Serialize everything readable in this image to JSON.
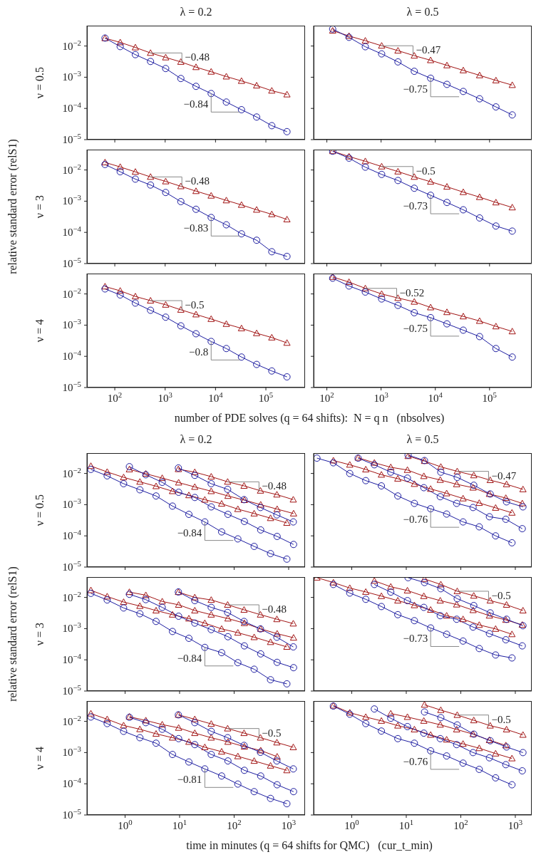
{
  "chart_data": [
    {
      "type": "line",
      "title": "λ = 0.2",
      "ylabel": "ν = 0.5",
      "tick_labels": "y",
      "x": [
        64,
        128,
        256,
        512,
        1024,
        2048,
        4096,
        8192,
        16384,
        32768,
        65536,
        131072,
        262144
      ],
      "xlim": [
        28,
        600000
      ],
      "xticks": [
        {
          "value": 100,
          "label": null
        },
        {
          "value": 1000,
          "label": null
        },
        {
          "value": 10000,
          "label": null
        },
        {
          "value": 100000,
          "label": null
        }
      ],
      "ylim": [
        1e-05,
        0.045
      ],
      "yticks": [
        {
          "value": 1e-05,
          "label": "10$^{−5}$"
        },
        {
          "value": 0.0001,
          "label": "10$^{−4}$"
        },
        {
          "value": 0.001,
          "label": "10$^{−3}$"
        },
        {
          "value": 0.01,
          "label": "10$^{−2}$"
        }
      ],
      "log": "xy",
      "series": [
        {
          "color": "#a11414",
          "marker": "triangle",
          "values": [
            0.0178,
            0.0131,
            0.009,
            0.006,
            0.0043,
            0.0031,
            0.0021,
            0.0015,
            0.00105,
            0.00076,
            0.00054,
            0.00037,
            0.00028
          ]
        },
        {
          "color": "#1c1ca0",
          "marker": "circle",
          "values": [
            0.018,
            0.0096,
            0.0053,
            0.0032,
            0.0019,
            0.00091,
            0.00051,
            0.0003,
            0.00016,
            9.1e-05,
            5.3e-05,
            2.8e-05,
            1.8e-05
          ]
        }
      ],
      "annotations": [
        {
          "text": "−0.48",
          "x": 512,
          "y": 0.006
        },
        {
          "text": "−0.84",
          "x": 8192,
          "y": 0.0003
        }
      ]
    },
    {
      "type": "line",
      "title": "λ = 0.5",
      "tick_labels": false,
      "x": [
        128,
        256,
        512,
        1024,
        2048,
        4096,
        8192,
        16384,
        32768,
        65536,
        131072,
        262144
      ],
      "xlim": [
        57,
        600000
      ],
      "xticks": [
        {
          "value": 100,
          "label": null
        },
        {
          "value": 1000,
          "label": null
        },
        {
          "value": 10000,
          "label": null
        },
        {
          "value": 100000,
          "label": null
        }
      ],
      "ylim": [
        1e-05,
        0.045
      ],
      "yticks": [
        {
          "value": 1e-05,
          "label": null
        },
        {
          "value": 0.0001,
          "label": null
        },
        {
          "value": 0.001,
          "label": null
        },
        {
          "value": 0.01,
          "label": null
        }
      ],
      "log": "xy",
      "series": [
        {
          "color": "#a11414",
          "marker": "triangle",
          "values": [
            0.031,
            0.021,
            0.0148,
            0.0102,
            0.0071,
            0.0049,
            0.0035,
            0.0024,
            0.00166,
            0.00115,
            0.00079,
            0.00056
          ]
        },
        {
          "color": "#1c1ca0",
          "marker": "circle",
          "values": [
            0.035,
            0.019,
            0.0095,
            0.0056,
            0.0031,
            0.00155,
            0.00093,
            0.00059,
            0.00035,
            0.000204,
            0.000112,
            6.2e-05
          ]
        }
      ],
      "annotations": [
        {
          "text": "−0.47",
          "x": 1024,
          "y": 0.0102
        },
        {
          "text": "−0.75",
          "x": 8192,
          "y": 0.00093
        }
      ]
    },
    {
      "type": "line",
      "ylabel": "ν = 3",
      "tick_labels": "y",
      "x": [
        64,
        128,
        256,
        512,
        1024,
        2048,
        4096,
        8192,
        16384,
        32768,
        65536,
        131072,
        262144
      ],
      "xlim": [
        28,
        600000
      ],
      "xticks": [
        {
          "value": 100,
          "label": null
        },
        {
          "value": 1000,
          "label": null
        },
        {
          "value": 10000,
          "label": null
        },
        {
          "value": 100000,
          "label": null
        }
      ],
      "ylim": [
        1e-05,
        0.045
      ],
      "yticks": [
        {
          "value": 1e-05,
          "label": "10$^{−5}$"
        },
        {
          "value": 0.0001,
          "label": "10$^{−4}$"
        },
        {
          "value": 0.001,
          "label": "10$^{−3}$"
        },
        {
          "value": 0.01,
          "label": "10$^{−2}$"
        }
      ],
      "log": "xy",
      "series": [
        {
          "color": "#a11414",
          "marker": "triangle",
          "values": [
            0.0175,
            0.0125,
            0.0087,
            0.006,
            0.0043,
            0.003,
            0.0021,
            0.0015,
            0.00106,
            0.00076,
            0.00053,
            0.00038,
            0.00026
          ]
        },
        {
          "color": "#1c1ca0",
          "marker": "circle",
          "values": [
            0.015,
            0.0088,
            0.0051,
            0.0033,
            0.0019,
            0.00097,
            0.00055,
            0.0003,
            0.000175,
            9e-05,
            5.6e-05,
            2.4e-05,
            1.7e-05
          ]
        }
      ],
      "annotations": [
        {
          "text": "−0.48",
          "x": 512,
          "y": 0.006
        },
        {
          "text": "−0.83",
          "x": 8192,
          "y": 0.0003
        },
        "relative standard error (relS1)"
      ]
    },
    {
      "type": "line",
      "tick_labels": false,
      "x": [
        128,
        256,
        512,
        1024,
        2048,
        4096,
        8192,
        16384,
        32768,
        65536,
        131072,
        262144
      ],
      "xlim": [
        57,
        600000
      ],
      "xticks": [
        {
          "value": 100,
          "label": null
        },
        {
          "value": 1000,
          "label": null
        },
        {
          "value": 10000,
          "label": null
        },
        {
          "value": 100000,
          "label": null
        }
      ],
      "ylim": [
        1e-05,
        0.045
      ],
      "yticks": [
        {
          "value": 1e-05,
          "label": null
        },
        {
          "value": 0.0001,
          "label": null
        },
        {
          "value": 0.001,
          "label": null
        },
        {
          "value": 0.01,
          "label": null
        }
      ],
      "log": "xy",
      "series": [
        {
          "color": "#a11414",
          "marker": "triangle",
          "values": [
            0.04,
            0.027,
            0.019,
            0.0129,
            0.0089,
            0.006,
            0.0042,
            0.0029,
            0.00195,
            0.00135,
            0.00091,
            0.00063
          ]
        },
        {
          "color": "#1c1ca0",
          "marker": "circle",
          "values": [
            0.04,
            0.024,
            0.0123,
            0.0072,
            0.0046,
            0.0026,
            0.00155,
            0.00091,
            0.00053,
            0.00029,
            0.00016,
            0.00011
          ]
        }
      ],
      "annotations": [
        {
          "text": "−0.5",
          "x": 1024,
          "y": 0.0129
        },
        {
          "text": "−0.73",
          "x": 8192,
          "y": 0.00155
        }
      ]
    },
    {
      "type": "line",
      "ylabel": "ν = 4",
      "xlabel": "number of PDE solves (q = 64 shifts):  N = q n   (nbsolves)",
      "x": [
        64,
        128,
        256,
        512,
        1024,
        2048,
        4096,
        8192,
        16384,
        32768,
        65536,
        131072,
        262144
      ],
      "xlim": [
        28,
        600000
      ],
      "xticks": [
        {
          "value": 100,
          "label": "10$^{2}$"
        },
        {
          "value": 1000,
          "label": "10$^{3}$"
        },
        {
          "value": 10000,
          "label": "10$^{4}$"
        },
        {
          "value": 100000,
          "label": "10$^{5}$"
        }
      ],
      "ylim": [
        1e-05,
        0.045
      ],
      "yticks": [
        {
          "value": 1e-05,
          "label": "10$^{−5}$"
        },
        {
          "value": 0.0001,
          "label": "10$^{−4}$"
        },
        {
          "value": 0.001,
          "label": "10$^{−3}$"
        },
        {
          "value": 0.01,
          "label": "10$^{−2}$"
        }
      ],
      "log": "xy",
      "series": [
        {
          "color": "#a11414",
          "marker": "triangle",
          "values": [
            0.0173,
            0.0126,
            0.0083,
            0.0061,
            0.0045,
            0.0031,
            0.0022,
            0.00157,
            0.00109,
            0.00079,
            0.00055,
            0.0004,
            0.00027
          ]
        },
        {
          "color": "#1c1ca0",
          "marker": "circle",
          "values": [
            0.0145,
            0.0093,
            0.0051,
            0.003,
            0.0018,
            0.00095,
            0.00053,
            0.0003,
            0.000178,
            9.5e-05,
            5.5e-05,
            3.4e-05,
            2.2e-05
          ]
        }
      ],
      "annotations": [
        {
          "text": "−0.5",
          "x": 512,
          "y": 0.0061
        },
        {
          "text": "−0.8",
          "x": 8192,
          "y": 0.0003
        }
      ]
    },
    {
      "type": "line",
      "tick_labels": "x",
      "x": [
        128,
        256,
        512,
        1024,
        2048,
        4096,
        8192,
        16384,
        32768,
        65536,
        131072,
        262144
      ],
      "xlim": [
        57,
        600000
      ],
      "xticks": [
        {
          "value": 100,
          "label": "10$^{2}$"
        },
        {
          "value": 1000,
          "label": "10$^{3}$"
        },
        {
          "value": 10000,
          "label": "10$^{4}$"
        },
        {
          "value": 100000,
          "label": "10$^{5}$"
        }
      ],
      "ylim": [
        1e-05,
        0.045
      ],
      "yticks": [
        {
          "value": 1e-05,
          "label": null
        },
        {
          "value": 0.0001,
          "label": null
        },
        {
          "value": 0.001,
          "label": null
        },
        {
          "value": 0.01,
          "label": null
        }
      ],
      "log": "xy",
      "series": [
        {
          "color": "#a11414",
          "marker": "triangle",
          "values": [
            0.035,
            0.024,
            0.0151,
            0.01,
            0.0074,
            0.0056,
            0.0037,
            0.0026,
            0.0019,
            0.00136,
            0.00091,
            0.00063
          ]
        },
        {
          "color": "#1c1ca0",
          "marker": "circle",
          "values": [
            0.032,
            0.018,
            0.0115,
            0.0069,
            0.0043,
            0.0025,
            0.00174,
            0.0011,
            0.00069,
            0.00043,
            0.000178,
            9.5e-05
          ]
        }
      ],
      "annotations": [
        {
          "text": "−0.52",
          "x": 512,
          "y": 0.0151
        },
        {
          "text": "−0.75",
          "x": 8192,
          "y": 0.00174
        }
      ]
    },
    {
      "type": "line",
      "title": "λ = 0.2",
      "ylabel": "ν = 0.5",
      "tick_labels": "y",
      "xlim": [
        0.2,
        2000
      ],
      "xticks": [
        {
          "value": 1,
          "label": null
        },
        {
          "value": 10,
          "label": null
        },
        {
          "value": 100,
          "label": null
        },
        {
          "value": 1000,
          "label": null
        }
      ],
      "ylim": [
        1e-05,
        0.045
      ],
      "yticks": [
        {
          "value": 1e-05,
          "label": "10$^{−5}$"
        },
        {
          "value": 0.0001,
          "label": "10$^{−4}$"
        },
        {
          "value": 0.001,
          "label": "10$^{−3}$"
        },
        {
          "value": 0.01,
          "label": "10$^{−2}$"
        }
      ],
      "log": "xy",
      "series": [
        {
          "color": "#a11414",
          "marker": "triangle",
          "x": [
            0.236,
            0.47,
            0.94,
            1.87,
            3.7,
            7.4,
            14.8,
            29,
            59,
            117,
            233,
            465,
            927
          ],
          "values": [
            0.0173,
            0.0112,
            0.0075,
            0.0054,
            0.0039,
            0.0027,
            0.002,
            0.00144,
            0.00107,
            0.00072,
            0.00052,
            0.00037,
            0.00026
          ]
        },
        {
          "color": "#a11414",
          "marker": "triangle",
          "x": [
            1.2,
            2.4,
            4.8,
            9.6,
            19,
            38,
            77,
            154,
            307,
            614,
            1230
          ],
          "values": [
            0.0135,
            0.0098,
            0.0071,
            0.0051,
            0.0037,
            0.0027,
            0.0019,
            0.0014,
            0.001,
            0.00072,
            0.00052
          ]
        },
        {
          "color": "#a11414",
          "marker": "triangle",
          "x": [
            9.5,
            19,
            38,
            76,
            152,
            304,
            608,
            1216
          ],
          "values": [
            0.0137,
            0.011,
            0.0079,
            0.0054,
            0.004,
            0.0028,
            0.0021,
            0.00145
          ]
        },
        {
          "color": "#1c1ca0",
          "marker": "circle",
          "x": [
            0.236,
            0.47,
            0.94,
            1.87,
            3.7,
            7.4,
            14.8,
            29,
            59,
            117,
            233,
            465,
            927
          ],
          "values": [
            0.0135,
            0.0084,
            0.0047,
            0.003,
            0.0019,
            0.0009,
            0.00049,
            0.00028,
            0.000134,
            8e-05,
            4.6e-05,
            2.7e-05,
            1.8e-05
          ]
        },
        {
          "color": "#1c1ca0",
          "marker": "circle",
          "x": [
            1.2,
            2.4,
            4.8,
            9.6,
            19,
            38,
            77,
            154,
            307,
            614,
            1230
          ],
          "values": [
            0.0165,
            0.0091,
            0.0052,
            0.0025,
            0.0017,
            0.00085,
            0.00049,
            0.00029,
            0.000155,
            9.6e-05,
            5.3e-05
          ]
        },
        {
          "color": "#1c1ca0",
          "marker": "circle",
          "x": [
            9.5,
            19,
            38,
            76,
            152,
            304,
            608,
            1216
          ],
          "values": [
            0.015,
            0.0087,
            0.0047,
            0.0031,
            0.00145,
            0.00081,
            0.00047,
            0.00028
          ]
        }
      ],
      "annotations": [
        {
          "text": "−0.48",
          "x": 76,
          "y": 0.0054
        },
        {
          "text": "−0.84",
          "x": 29,
          "y": 0.00028
        }
      ]
    },
    {
      "type": "line",
      "title": "λ = 0.5",
      "tick_labels": false,
      "xlim": [
        0.2,
        2000
      ],
      "xticks": [
        {
          "value": 1,
          "label": null
        },
        {
          "value": 10,
          "label": null
        },
        {
          "value": 100,
          "label": null
        },
        {
          "value": 1000,
          "label": null
        }
      ],
      "ylim": [
        1e-05,
        0.045
      ],
      "yticks": [
        {
          "value": 1e-05,
          "label": null
        },
        {
          "value": 0.0001,
          "label": null
        },
        {
          "value": 0.001,
          "label": null
        },
        {
          "value": 0.01,
          "label": null
        }
      ],
      "log": "xy",
      "series": [
        {
          "color": "#a11414",
          "marker": "triangle",
          "x": [
            0.46,
            0.92,
            1.81,
            3.5,
            7,
            14.1,
            28,
            55,
            110,
            218,
            435,
            868
          ],
          "values": [
            0.026,
            0.019,
            0.0134,
            0.0091,
            0.0068,
            0.0046,
            0.0032,
            0.0023,
            0.00158,
            0.00113,
            0.00079,
            0.00055
          ]
        },
        {
          "color": "#a11414",
          "marker": "triangle",
          "x": [
            1.31,
            2.6,
            5.2,
            10.5,
            21,
            42,
            84,
            168,
            335,
            670,
            1340
          ],
          "values": [
            0.032,
            0.022,
            0.0158,
            0.0129,
            0.0082,
            0.0062,
            0.0045,
            0.0035,
            0.0022,
            0.00163,
            0.0011
          ]
        },
        {
          "color": "#a11414",
          "marker": "triangle",
          "x": [
            10.8,
            21.6,
            43,
            86,
            173,
            346,
            690,
            1380
          ],
          "values": [
            0.036,
            0.025,
            0.0163,
            0.0117,
            0.0087,
            0.0061,
            0.0045,
            0.0031
          ]
        },
        {
          "color": "#1c1ca0",
          "marker": "circle",
          "x": [
            0.23,
            0.46,
            0.92,
            1.81,
            3.5,
            7,
            14.1,
            28,
            55,
            110,
            218,
            435,
            868
          ],
          "values": [
            0.031,
            0.022,
            0.01,
            0.0059,
            0.004,
            0.0019,
            0.0011,
            0.00074,
            0.0005,
            0.00028,
            0.000195,
            0.0001,
            6e-05
          ]
        },
        {
          "color": "#1c1ca0",
          "marker": "circle",
          "x": [
            1.31,
            2.6,
            5.2,
            10.5,
            21,
            42,
            84,
            168,
            335,
            670,
            1340
          ],
          "values": [
            0.031,
            0.019,
            0.011,
            0.0071,
            0.0035,
            0.0018,
            0.0011,
            0.00081,
            0.00041,
            0.00034,
            0.00017
          ]
        },
        {
          "color": "#1c1ca0",
          "marker": "circle",
          "x": [
            10.8,
            21.6,
            43,
            86,
            173,
            346,
            690,
            1380
          ],
          "values": [
            0.039,
            0.026,
            0.011,
            0.0075,
            0.0042,
            0.0022,
            0.00123,
            0.00085
          ]
        }
      ],
      "annotations": [
        {
          "text": "−0.47",
          "x": 86,
          "y": 0.0117
        },
        {
          "text": "−0.76",
          "x": 28,
          "y": 0.00074
        }
      ]
    },
    {
      "type": "line",
      "ylabel": "ν = 3",
      "tick_labels": "y",
      "xlim": [
        0.2,
        2000
      ],
      "xticks": [
        {
          "value": 1,
          "label": null
        },
        {
          "value": 10,
          "label": null
        },
        {
          "value": 100,
          "label": null
        },
        {
          "value": 1000,
          "label": null
        }
      ],
      "ylim": [
        1e-05,
        0.045
      ],
      "yticks": [
        {
          "value": 1e-05,
          "label": "10$^{−5}$"
        },
        {
          "value": 0.0001,
          "label": "10$^{−4}$"
        },
        {
          "value": 0.001,
          "label": "10$^{−3}$"
        },
        {
          "value": 0.01,
          "label": "10$^{−2}$"
        }
      ],
      "log": "xy",
      "series": [
        {
          "color": "#a11414",
          "marker": "triangle",
          "x": [
            0.236,
            0.47,
            0.94,
            1.87,
            3.7,
            7.4,
            14.8,
            29,
            59,
            117,
            233,
            465,
            927
          ],
          "values": [
            0.017,
            0.0107,
            0.0071,
            0.0053,
            0.0038,
            0.0028,
            0.0021,
            0.0015,
            0.00098,
            0.00074,
            0.00053,
            0.00037,
            0.00026
          ]
        },
        {
          "color": "#a11414",
          "marker": "triangle",
          "x": [
            1.2,
            2.4,
            4.8,
            9.6,
            19,
            38,
            77,
            154,
            307,
            614,
            1230
          ],
          "values": [
            0.0148,
            0.0118,
            0.0074,
            0.0058,
            0.0038,
            0.0028,
            0.0021,
            0.0015,
            0.00098,
            0.00069,
            0.00051
          ]
        },
        {
          "color": "#a11414",
          "marker": "triangle",
          "x": [
            9.5,
            19,
            38,
            76,
            152,
            304,
            608,
            1216
          ],
          "values": [
            0.0148,
            0.01,
            0.0083,
            0.0058,
            0.004,
            0.0028,
            0.002,
            0.00145
          ]
        },
        {
          "color": "#1c1ca0",
          "marker": "circle",
          "x": [
            0.236,
            0.47,
            0.94,
            1.87,
            3.7,
            7.4,
            14.8,
            29,
            59,
            117,
            233,
            465,
            927
          ],
          "values": [
            0.0135,
            0.0083,
            0.0046,
            0.003,
            0.0017,
            0.00081,
            0.00049,
            0.00025,
            0.00017,
            8.1e-05,
            5e-05,
            2.3e-05,
            1.7e-05
          ]
        },
        {
          "color": "#1c1ca0",
          "marker": "circle",
          "x": [
            1.2,
            2.4,
            4.8,
            9.6,
            19,
            38,
            77,
            154,
            307,
            614,
            1230
          ],
          "values": [
            0.0126,
            0.0085,
            0.0048,
            0.0025,
            0.0015,
            0.00093,
            0.00055,
            0.00028,
            0.000155,
            8.3e-05,
            5.6e-05
          ]
        },
        {
          "color": "#1c1ca0",
          "marker": "circle",
          "x": [
            9.5,
            19,
            38,
            76,
            152,
            304,
            608,
            1216
          ],
          "values": [
            0.015,
            0.0079,
            0.0048,
            0.0033,
            0.0017,
            0.00098,
            0.00053,
            0.00026
          ]
        }
      ],
      "annotations": [
        {
          "text": "−0.48",
          "x": 76,
          "y": 0.0058
        },
        {
          "text": "−0.84",
          "x": 29,
          "y": 0.00025
        },
        "relative standard error (relS1)"
      ]
    },
    {
      "type": "line",
      "tick_labels": false,
      "xlim": [
        0.2,
        2000
      ],
      "xticks": [
        {
          "value": 1,
          "label": null
        },
        {
          "value": 10,
          "label": null
        },
        {
          "value": 100,
          "label": null
        },
        {
          "value": 1000,
          "label": null
        }
      ],
      "ylim": [
        1e-05,
        0.045
      ],
      "yticks": [
        {
          "value": 1e-05,
          "label": null
        },
        {
          "value": 0.0001,
          "label": null
        },
        {
          "value": 0.001,
          "label": null
        },
        {
          "value": 0.01,
          "label": null
        }
      ],
      "log": "xy",
      "series": [
        {
          "color": "#a11414",
          "marker": "triangle",
          "x": [
            0.23,
            0.46,
            0.92,
            1.81,
            3.5,
            7,
            14.1,
            28,
            55,
            110,
            218,
            435,
            868
          ],
          "values": [
            0.043,
            0.03,
            0.02,
            0.015,
            0.011,
            0.0079,
            0.0056,
            0.004,
            0.0026,
            0.002,
            0.00131,
            0.00098,
            0.00066
          ]
        },
        {
          "color": "#a11414",
          "marker": "triangle",
          "x": [
            2.6,
            5.2,
            10.5,
            21,
            42,
            84,
            168,
            335,
            670,
            1340
          ],
          "values": [
            0.034,
            0.022,
            0.0166,
            0.011,
            0.0079,
            0.0059,
            0.0039,
            0.0026,
            0.0019,
            0.00132
          ]
        },
        {
          "color": "#a11414",
          "marker": "triangle",
          "x": [
            21.6,
            43,
            86,
            173,
            346,
            690,
            1380
          ],
          "values": [
            0.039,
            0.026,
            0.0158,
            0.0113,
            0.0079,
            0.0058,
            0.0038
          ]
        },
        {
          "color": "#1c1ca0",
          "marker": "circle",
          "x": [
            0.46,
            0.92,
            1.81,
            3.5,
            7,
            14.1,
            28,
            55,
            110,
            218,
            435,
            868
          ],
          "values": [
            0.026,
            0.0138,
            0.0087,
            0.0051,
            0.0028,
            0.0018,
            0.00105,
            0.00066,
            0.0004,
            0.00023,
            0.000143,
            0.000115
          ]
        },
        {
          "color": "#1c1ca0",
          "marker": "circle",
          "x": [
            2.6,
            5.2,
            10.5,
            21,
            42,
            84,
            168,
            335,
            670,
            1340
          ],
          "values": [
            0.026,
            0.0148,
            0.0079,
            0.0048,
            0.0026,
            0.002,
            0.00112,
            0.00069,
            0.00044,
            0.00028
          ]
        },
        {
          "color": "#1c1ca0",
          "marker": "circle",
          "x": [
            10.8,
            21.6,
            43,
            86,
            173,
            346,
            690,
            1380
          ],
          "values": [
            0.043,
            0.03,
            0.019,
            0.0091,
            0.0055,
            0.0032,
            0.002,
            0.00124
          ]
        }
      ],
      "annotations": [
        {
          "text": "−0.5",
          "x": 86,
          "y": 0.0158
        },
        {
          "text": "−0.73",
          "x": 28,
          "y": 0.00105
        }
      ]
    },
    {
      "type": "line",
      "ylabel": "ν = 4",
      "xlabel": "time in minutes (q = 64 shifts for QMC)   (cur_t_min)",
      "xlim": [
        0.2,
        2000
      ],
      "xticks": [
        {
          "value": 1,
          "label": "10$^{0}$"
        },
        {
          "value": 10,
          "label": "10$^{1}$"
        },
        {
          "value": 100,
          "label": "10$^{2}$"
        },
        {
          "value": 1000,
          "label": "10$^{3}$"
        }
      ],
      "ylim": [
        1e-05,
        0.045
      ],
      "yticks": [
        {
          "value": 1e-05,
          "label": "10$^{−5}$"
        },
        {
          "value": 0.0001,
          "label": "10$^{−4}$"
        },
        {
          "value": 0.001,
          "label": "10$^{−3}$"
        },
        {
          "value": 0.01,
          "label": "10$^{−2}$"
        }
      ],
      "log": "xy",
      "series": [
        {
          "color": "#a11414",
          "marker": "triangle",
          "x": [
            0.236,
            0.47,
            0.94,
            1.87,
            3.7,
            7.4,
            14.8,
            29,
            59,
            117,
            233,
            465,
            927
          ],
          "values": [
            0.0178,
            0.0117,
            0.0074,
            0.0056,
            0.004,
            0.003,
            0.0022,
            0.00148,
            0.00107,
            0.00076,
            0.00054,
            0.00038,
            0.00027
          ]
        },
        {
          "color": "#a11414",
          "marker": "triangle",
          "x": [
            1.2,
            2.4,
            4.8,
            9.6,
            19,
            38,
            77,
            154,
            307,
            614
          ],
          "values": [
            0.0141,
            0.0107,
            0.0079,
            0.0062,
            0.0042,
            0.003,
            0.0022,
            0.00155,
            0.00117,
            0.00074
          ]
        },
        {
          "color": "#a11414",
          "marker": "triangle",
          "x": [
            9.5,
            19,
            38,
            76,
            152,
            304,
            608,
            1216
          ],
          "values": [
            0.0162,
            0.0117,
            0.0083,
            0.0059,
            0.0042,
            0.003,
            0.0021,
            0.00148
          ]
        },
        {
          "color": "#1c1ca0",
          "marker": "circle",
          "x": [
            0.236,
            0.47,
            0.94,
            1.87,
            3.7,
            7.4,
            14.8,
            29,
            59,
            117,
            233,
            465,
            927
          ],
          "values": [
            0.0138,
            0.0085,
            0.0048,
            0.003,
            0.002,
            0.00087,
            0.0005,
            0.0003,
            0.000178,
            9.8e-05,
            5.6e-05,
            3.4e-05,
            2.3e-05
          ]
        },
        {
          "color": "#1c1ca0",
          "marker": "circle",
          "x": [
            1.2,
            2.4,
            4.8,
            9.6,
            19,
            38,
            77,
            154,
            307,
            614,
            1230
          ],
          "values": [
            0.0135,
            0.0091,
            0.0056,
            0.0028,
            0.0018,
            0.00087,
            0.00054,
            0.00027,
            0.000178,
            9.3e-05,
            5.6e-05
          ]
        },
        {
          "color": "#1c1ca0",
          "marker": "circle",
          "x": [
            9.5,
            19,
            38,
            76,
            152,
            304,
            608,
            1216
          ],
          "values": [
            0.0162,
            0.0091,
            0.0048,
            0.003,
            0.0017,
            0.00102,
            0.00054,
            0.0003
          ]
        }
      ],
      "annotations": [
        {
          "text": "−0.5",
          "x": 76,
          "y": 0.0059
        },
        {
          "text": "−0.81",
          "x": 29,
          "y": 0.0003
        }
      ]
    },
    {
      "type": "line",
      "tick_labels": "x",
      "xlim": [
        0.2,
        2000
      ],
      "xticks": [
        {
          "value": 1,
          "label": "10$^{0}$"
        },
        {
          "value": 10,
          "label": "10$^{1}$"
        },
        {
          "value": 100,
          "label": "10$^{2}$"
        },
        {
          "value": 1000,
          "label": "10$^{3}$"
        }
      ],
      "ylim": [
        1e-05,
        0.045
      ],
      "yticks": [
        {
          "value": 1e-05,
          "label": null
        },
        {
          "value": 0.0001,
          "label": null
        },
        {
          "value": 0.001,
          "label": null
        },
        {
          "value": 0.01,
          "label": null
        }
      ],
      "log": "xy",
      "series": [
        {
          "color": "#a11414",
          "marker": "triangle",
          "x": [
            0.46,
            0.92,
            1.81,
            3.5,
            7,
            14.1,
            28,
            55,
            110,
            218,
            435,
            868
          ],
          "values": [
            0.032,
            0.019,
            0.0138,
            0.0104,
            0.0073,
            0.0055,
            0.0037,
            0.0026,
            0.0019,
            0.00138,
            0.00093,
            0.00065
          ]
        },
        {
          "color": "#a11414",
          "marker": "triangle",
          "x": [
            5.2,
            10.5,
            21,
            42,
            84,
            168,
            335,
            670
          ],
          "values": [
            0.0178,
            0.0138,
            0.0104,
            0.0078,
            0.0055,
            0.0039,
            0.0025,
            0.0017
          ]
        },
        {
          "color": "#a11414",
          "marker": "triangle",
          "x": [
            21.6,
            43,
            86,
            173,
            346,
            690,
            1380
          ],
          "values": [
            0.034,
            0.023,
            0.016,
            0.0108,
            0.0073,
            0.0055,
            0.0037
          ]
        },
        {
          "color": "#1c1ca0",
          "marker": "circle",
          "x": [
            0.46,
            0.92,
            1.81,
            3.5,
            7,
            14.1,
            28,
            55,
            110,
            218,
            435,
            868
          ],
          "values": [
            0.031,
            0.017,
            0.0085,
            0.0049,
            0.0028,
            0.002,
            0.00114,
            0.00078,
            0.00046,
            0.00029,
            0.000155,
            9.3e-05
          ]
        },
        {
          "color": "#1c1ca0",
          "marker": "circle",
          "x": [
            2.6,
            5.2,
            10.5,
            21,
            42,
            84,
            168,
            335,
            670,
            1340
          ],
          "values": [
            0.025,
            0.0126,
            0.0068,
            0.0042,
            0.0028,
            0.0018,
            0.001,
            0.00068,
            0.00041,
            0.00026
          ]
        },
        {
          "color": "#1c1ca0",
          "marker": "circle",
          "x": [
            21.6,
            43,
            86,
            173,
            346,
            690,
            1380
          ],
          "values": [
            0.02,
            0.0132,
            0.0077,
            0.0039,
            0.0024,
            0.00151,
            0.001
          ]
        }
      ],
      "annotations": [
        {
          "text": "−0.5",
          "x": 86,
          "y": 0.016
        },
        {
          "text": "−0.76",
          "x": 28,
          "y": 0.00114
        }
      ]
    }
  ]
}
